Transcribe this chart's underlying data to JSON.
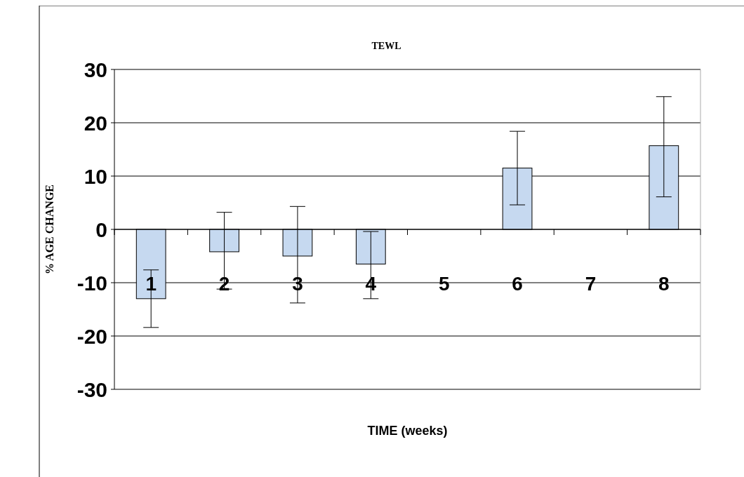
{
  "chart_data": {
    "type": "bar",
    "title": "TEWL",
    "xlabel": "TIME (weeks)",
    "ylabel": "% AGE CHANGE",
    "categories": [
      "1",
      "2",
      "3",
      "4",
      "5",
      "6",
      "7",
      "8"
    ],
    "values": [
      -13.0,
      -4.2,
      -5.0,
      -6.5,
      null,
      11.5,
      null,
      15.7
    ],
    "errors": [
      [
        -18.4,
        -7.6
      ],
      [
        -11.2,
        3.2
      ],
      [
        -13.8,
        4.3
      ],
      [
        -13.0,
        -0.4
      ],
      null,
      [
        4.6,
        18.4
      ],
      null,
      [
        6.1,
        24.9
      ]
    ],
    "color": "#c6d9f0",
    "ylim": [
      -30,
      30
    ],
    "yticks": [
      -30,
      -20,
      -10,
      0,
      10,
      20,
      30
    ],
    "grid": "y"
  }
}
